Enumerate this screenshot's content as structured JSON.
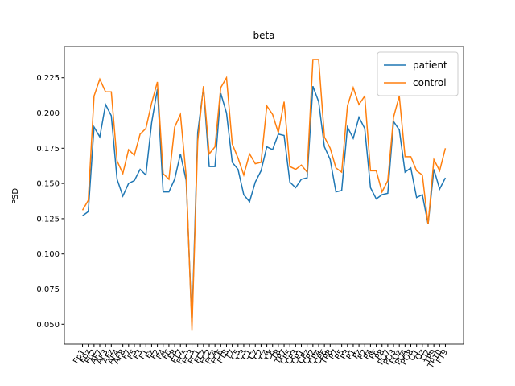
{
  "chart_data": {
    "type": "line",
    "title": "beta",
    "y_label": "PSD",
    "categories": [
      "Fp1",
      "Fpz",
      "Fp2",
      "AF7",
      "AF3",
      "AFz",
      "AF4",
      "AF8",
      "F7",
      "F5",
      "F3",
      "F1",
      "Fz",
      "F2",
      "F4",
      "F6",
      "F8",
      "FT7",
      "FC5",
      "FC3",
      "FC1",
      "FCz",
      "FC2",
      "FC4",
      "FC6",
      "FT8",
      "T7",
      "C5",
      "C3",
      "C1",
      "Cz",
      "C2",
      "C4",
      "C6",
      "T8",
      "TP7",
      "CP5",
      "CP3",
      "CP1",
      "CPz",
      "CP2",
      "CP4",
      "CP6",
      "TP8",
      "P7",
      "P5",
      "P3",
      "P1",
      "Pz",
      "P2",
      "P4",
      "P6",
      "P8",
      "PO7",
      "PO3",
      "POz",
      "PO4",
      "PO8",
      "O1",
      "Oz",
      "O2",
      "TP9",
      "TP10",
      "FT9"
    ],
    "series": [
      {
        "name": "patient",
        "color": "#1f77b4",
        "values": [
          0.127,
          0.13,
          0.19,
          0.183,
          0.206,
          0.198,
          0.153,
          0.141,
          0.15,
          0.152,
          0.16,
          0.156,
          0.193,
          0.217,
          0.144,
          0.144,
          0.153,
          0.171,
          0.152,
          0.05,
          0.186,
          0.218,
          0.162,
          0.162,
          0.214,
          0.2,
          0.165,
          0.16,
          0.142,
          0.137,
          0.151,
          0.159,
          0.176,
          0.174,
          0.185,
          0.184,
          0.151,
          0.147,
          0.153,
          0.154,
          0.219,
          0.208,
          0.176,
          0.167,
          0.144,
          0.145,
          0.19,
          0.182,
          0.197,
          0.189,
          0.147,
          0.139,
          0.142,
          0.143,
          0.194,
          0.188,
          0.158,
          0.161,
          0.14,
          0.142,
          0.121,
          0.16,
          0.146,
          0.154
        ]
      },
      {
        "name": "control",
        "color": "#ff7f0e",
        "values": [
          0.131,
          0.138,
          0.212,
          0.224,
          0.215,
          0.215,
          0.166,
          0.157,
          0.174,
          0.17,
          0.185,
          0.189,
          0.207,
          0.222,
          0.157,
          0.153,
          0.19,
          0.199,
          0.155,
          0.046,
          0.18,
          0.219,
          0.171,
          0.176,
          0.218,
          0.225,
          0.178,
          0.168,
          0.156,
          0.171,
          0.164,
          0.165,
          0.205,
          0.199,
          0.186,
          0.208,
          0.162,
          0.16,
          0.163,
          0.158,
          0.238,
          0.238,
          0.183,
          0.175,
          0.161,
          0.158,
          0.205,
          0.218,
          0.206,
          0.212,
          0.159,
          0.159,
          0.144,
          0.152,
          0.197,
          0.212,
          0.169,
          0.169,
          0.159,
          0.156,
          0.121,
          0.167,
          0.159,
          0.175
        ]
      }
    ],
    "ylim": [
      0.0359,
      0.2471
    ],
    "yticks": [
      {
        "value": 0.05,
        "label": "0.050"
      },
      {
        "value": 0.075,
        "label": "0.075"
      },
      {
        "value": 0.1,
        "label": "0.100"
      },
      {
        "value": 0.125,
        "label": "0.125"
      },
      {
        "value": 0.15,
        "label": "0.150"
      },
      {
        "value": 0.175,
        "label": "0.175"
      },
      {
        "value": 0.2,
        "label": "0.200"
      },
      {
        "value": 0.225,
        "label": "0.225"
      }
    ],
    "legend": "upper right",
    "grid": false
  }
}
